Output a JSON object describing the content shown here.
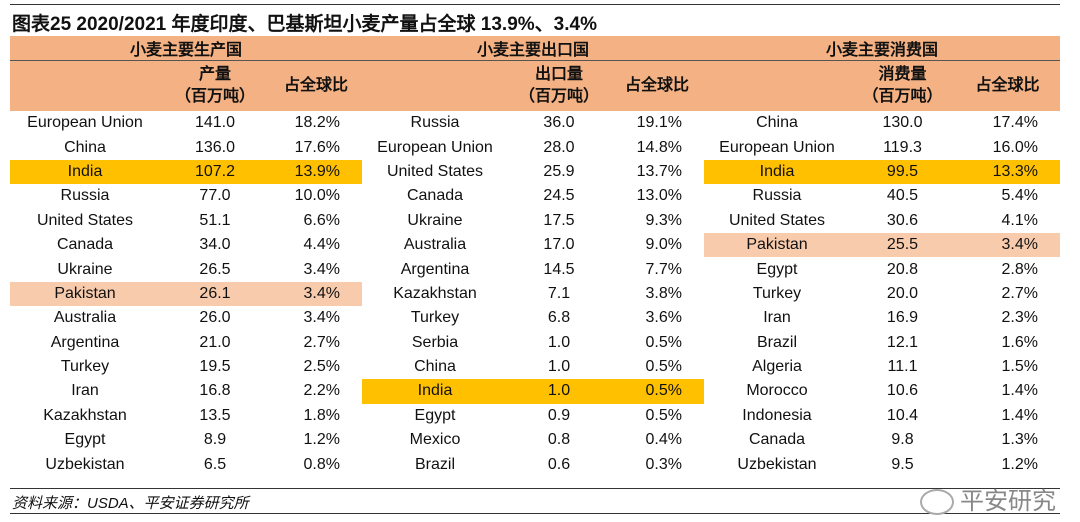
{
  "title": "图表25  2020/2021 年度印度、巴基斯坦小麦产量占全球 13.9%、3.4%",
  "groups": [
    {
      "header": "小麦主要生产国",
      "value_header_1": "产量",
      "value_header_2": "（百万吨）",
      "pct_header": "占全球比",
      "rows": [
        [
          "European Union",
          "141.0",
          "18.2%",
          ""
        ],
        [
          "China",
          "136.0",
          "17.6%",
          ""
        ],
        [
          "India",
          "107.2",
          "13.9%",
          "y"
        ],
        [
          "Russia",
          "77.0",
          "10.0%",
          ""
        ],
        [
          "United States",
          "51.1",
          "6.6%",
          ""
        ],
        [
          "Canada",
          "34.0",
          "4.4%",
          ""
        ],
        [
          "Ukraine",
          "26.5",
          "3.4%",
          ""
        ],
        [
          "Pakistan",
          "26.1",
          "3.4%",
          "p"
        ],
        [
          "Australia",
          "26.0",
          "3.4%",
          ""
        ],
        [
          "Argentina",
          "21.0",
          "2.7%",
          ""
        ],
        [
          "Turkey",
          "19.5",
          "2.5%",
          ""
        ],
        [
          "Iran",
          "16.8",
          "2.2%",
          ""
        ],
        [
          "Kazakhstan",
          "13.5",
          "1.8%",
          ""
        ],
        [
          "Egypt",
          "8.9",
          "1.2%",
          ""
        ],
        [
          "Uzbekistan",
          "6.5",
          "0.8%",
          ""
        ]
      ]
    },
    {
      "header": "小麦主要出口国",
      "value_header_1": "出口量",
      "value_header_2": "（百万吨）",
      "pct_header": "占全球比",
      "rows": [
        [
          "Russia",
          "36.0",
          "19.1%",
          ""
        ],
        [
          "European Union",
          "28.0",
          "14.8%",
          ""
        ],
        [
          "United States",
          "25.9",
          "13.7%",
          ""
        ],
        [
          "Canada",
          "24.5",
          "13.0%",
          ""
        ],
        [
          "Ukraine",
          "17.5",
          "9.3%",
          ""
        ],
        [
          "Australia",
          "17.0",
          "9.0%",
          ""
        ],
        [
          "Argentina",
          "14.5",
          "7.7%",
          ""
        ],
        [
          "Kazakhstan",
          "7.1",
          "3.8%",
          ""
        ],
        [
          "Turkey",
          "6.8",
          "3.6%",
          ""
        ],
        [
          "Serbia",
          "1.0",
          "0.5%",
          ""
        ],
        [
          "China",
          "1.0",
          "0.5%",
          ""
        ],
        [
          "India",
          "1.0",
          "0.5%",
          "y"
        ],
        [
          "Egypt",
          "0.9",
          "0.5%",
          ""
        ],
        [
          "Mexico",
          "0.8",
          "0.4%",
          ""
        ],
        [
          "Brazil",
          "0.6",
          "0.3%",
          ""
        ]
      ]
    },
    {
      "header": "小麦主要消费国",
      "value_header_1": "消费量",
      "value_header_2": "（百万吨）",
      "pct_header": "占全球比",
      "rows": [
        [
          "China",
          "130.0",
          "17.4%",
          ""
        ],
        [
          "European Union",
          "119.3",
          "16.0%",
          ""
        ],
        [
          "India",
          "99.5",
          "13.3%",
          "y"
        ],
        [
          "Russia",
          "40.5",
          "5.4%",
          ""
        ],
        [
          "United States",
          "30.6",
          "4.1%",
          ""
        ],
        [
          "Pakistan",
          "25.5",
          "3.4%",
          "p"
        ],
        [
          "Egypt",
          "20.8",
          "2.8%",
          ""
        ],
        [
          "Turkey",
          "20.0",
          "2.7%",
          ""
        ],
        [
          "Iran",
          "16.9",
          "2.3%",
          ""
        ],
        [
          "Brazil",
          "12.1",
          "1.6%",
          ""
        ],
        [
          "Algeria",
          "11.1",
          "1.5%",
          ""
        ],
        [
          "Morocco",
          "10.6",
          "1.4%",
          ""
        ],
        [
          "Indonesia",
          "10.4",
          "1.4%",
          ""
        ],
        [
          "Canada",
          "9.8",
          "1.3%",
          ""
        ],
        [
          "Uzbekistan",
          "9.5",
          "1.2%",
          ""
        ]
      ]
    }
  ],
  "source": "资料来源：USDA、平安证券研究所",
  "watermark": "平安研究",
  "colors": {
    "header": "#f4b183",
    "highlight_india": "#ffc000",
    "highlight_pakistan": "#f8cbad"
  }
}
